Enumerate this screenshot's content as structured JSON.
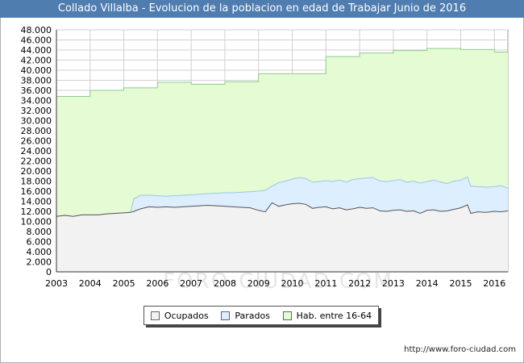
{
  "header": {
    "title": "Collado Villalba - Evolucion de la poblacion en edad de Trabajar Junio de 2016"
  },
  "watermark": "FORO-CIUDAD.COM",
  "footer": {
    "url": "http://www.foro-ciudad.com"
  },
  "colors": {
    "title_bg": "#4f7db0",
    "ocupados_fill": "#f2f2f2",
    "parados_fill": "#ddeeff",
    "hab_fill": "#e4fbd4",
    "hab_line": "#8fcc8f",
    "parados_line": "#9fc6ea",
    "ocupados_line": "#555555"
  },
  "legend": [
    {
      "label": "Ocupados",
      "color": "#f2f2f2"
    },
    {
      "label": "Parados",
      "color": "#ddeeff"
    },
    {
      "label": "Hab. entre 16-64",
      "color": "#e4fbd4"
    }
  ],
  "chart_data": {
    "type": "area",
    "title": "Collado Villalba - Evolucion de la poblacion en edad de Trabajar Junio de 2016",
    "xlabel": "",
    "ylabel": "",
    "xlim": [
      2003,
      2016.4
    ],
    "ylim": [
      0,
      48000
    ],
    "grid": true,
    "x_ticks": [
      "2003",
      "2004",
      "2005",
      "2006",
      "2007",
      "2008",
      "2009",
      "2010",
      "2011",
      "2012",
      "2013",
      "2014",
      "2015",
      "2016"
    ],
    "y_ticks": [
      "0",
      "2.000",
      "4.000",
      "6.000",
      "8.000",
      "10.000",
      "12.000",
      "14.000",
      "16.000",
      "18.000",
      "20.000",
      "22.000",
      "24.000",
      "26.000",
      "28.000",
      "30.000",
      "32.000",
      "34.000",
      "36.000",
      "38.000",
      "40.000",
      "42.000",
      "44.000",
      "46.000",
      "48.000"
    ],
    "series": [
      {
        "name": "Hab. entre 16-64",
        "x": [
          2003,
          2004,
          2004,
          2005,
          2005,
          2006,
          2006,
          2007,
          2007,
          2008,
          2008,
          2009,
          2009,
          2010,
          2010,
          2011,
          2011,
          2012,
          2012,
          2013,
          2013,
          2014,
          2014,
          2015,
          2015,
          2016,
          2016,
          2016.4
        ],
        "values": [
          34800,
          34800,
          36000,
          36000,
          36500,
          36500,
          37600,
          37600,
          37200,
          37200,
          37700,
          37700,
          39300,
          39300,
          39300,
          39300,
          42700,
          42700,
          43400,
          43400,
          43900,
          43900,
          44300,
          44300,
          44100,
          44100,
          43600,
          43600
        ]
      },
      {
        "name": "Parados",
        "x": [
          2003,
          2003.25,
          2003.5,
          2003.75,
          2004,
          2004.25,
          2004.5,
          2004.75,
          2005,
          2005.2,
          2005.3,
          2005.5,
          2005.75,
          2006,
          2006.25,
          2006.5,
          2006.75,
          2007,
          2007.25,
          2007.5,
          2007.75,
          2008,
          2008.25,
          2008.5,
          2008.75,
          2009,
          2009.2,
          2009.4,
          2009.6,
          2009.8,
          2010,
          2010.2,
          2010.4,
          2010.6,
          2010.8,
          2011,
          2011.2,
          2011.4,
          2011.6,
          2011.8,
          2012,
          2012.2,
          2012.4,
          2012.6,
          2012.8,
          2013,
          2013.2,
          2013.4,
          2013.6,
          2013.8,
          2014,
          2014.2,
          2014.4,
          2014.6,
          2014.8,
          2015,
          2015.2,
          2015.3,
          2015.5,
          2015.75,
          2016,
          2016.2,
          2016.4
        ],
        "values": [
          11000,
          11200,
          11000,
          11300,
          11300,
          11300,
          11500,
          11600,
          11700,
          11800,
          14500,
          15200,
          15200,
          15100,
          15000,
          15100,
          15200,
          15300,
          15400,
          15500,
          15600,
          15700,
          15700,
          15800,
          15900,
          16000,
          16200,
          17000,
          17700,
          18000,
          18400,
          18700,
          18500,
          17800,
          17900,
          18100,
          17900,
          18200,
          17800,
          18300,
          18500,
          18600,
          18700,
          18000,
          17900,
          18100,
          18300,
          17800,
          18000,
          17600,
          17900,
          18200,
          17800,
          17500,
          18000,
          18200,
          18800,
          17000,
          16900,
          16800,
          16900,
          17100,
          16600
        ]
      },
      {
        "name": "Ocupados",
        "x": [
          2003,
          2003.25,
          2003.5,
          2003.75,
          2004,
          2004.25,
          2004.5,
          2004.75,
          2005,
          2005.2,
          2005.3,
          2005.5,
          2005.75,
          2006,
          2006.25,
          2006.5,
          2006.75,
          2007,
          2007.25,
          2007.5,
          2007.75,
          2008,
          2008.25,
          2008.5,
          2008.75,
          2009,
          2009.2,
          2009.4,
          2009.6,
          2009.8,
          2010,
          2010.2,
          2010.4,
          2010.6,
          2010.8,
          2011,
          2011.2,
          2011.4,
          2011.6,
          2011.8,
          2012,
          2012.2,
          2012.4,
          2012.6,
          2012.8,
          2013,
          2013.2,
          2013.4,
          2013.6,
          2013.8,
          2014,
          2014.2,
          2014.4,
          2014.6,
          2014.8,
          2015,
          2015.2,
          2015.3,
          2015.5,
          2015.75,
          2016,
          2016.2,
          2016.4
        ],
        "values": [
          11000,
          11200,
          11000,
          11300,
          11300,
          11300,
          11500,
          11600,
          11700,
          11800,
          12000,
          12500,
          12900,
          12800,
          12900,
          12800,
          12900,
          13000,
          13100,
          13200,
          13100,
          13000,
          12900,
          12800,
          12700,
          12200,
          11900,
          13700,
          13000,
          13300,
          13500,
          13600,
          13400,
          12600,
          12800,
          12900,
          12500,
          12700,
          12300,
          12500,
          12800,
          12600,
          12700,
          12100,
          12000,
          12200,
          12300,
          12000,
          12100,
          11600,
          12200,
          12300,
          12000,
          12100,
          12400,
          12700,
          13300,
          11600,
          11900,
          11800,
          12000,
          11900,
          12100
        ]
      }
    ]
  }
}
